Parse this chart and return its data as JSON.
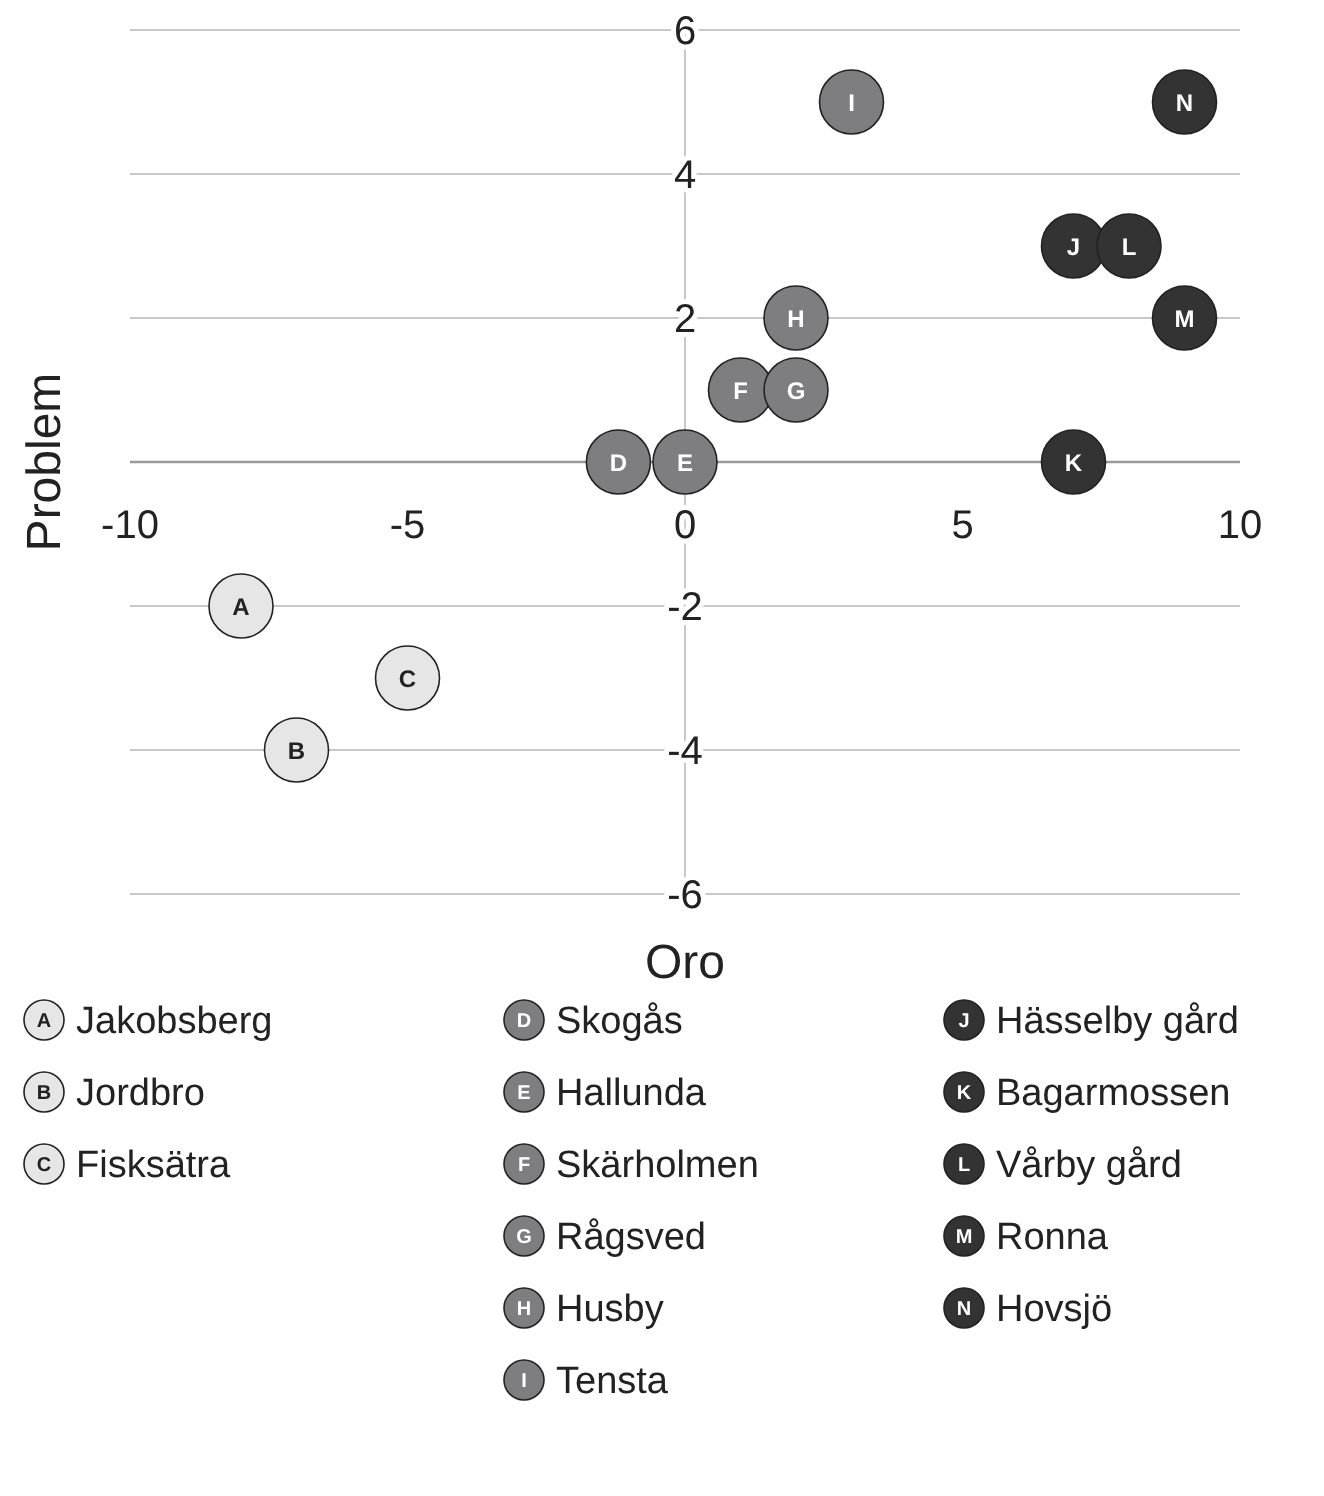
{
  "chart_data": {
    "type": "scatter",
    "xlabel": "Oro",
    "ylabel": "Problem",
    "xlim": [
      -10,
      10
    ],
    "xticks": [
      -10,
      -5,
      0,
      5,
      10
    ],
    "ylim": [
      -6,
      6
    ],
    "yticks": [
      -6,
      -4,
      -2,
      2,
      4,
      6
    ],
    "grid": "y",
    "legend": "bottom",
    "marker": "circle",
    "series": [
      {
        "name": "Jakobsberg",
        "color": "#e6e6e7",
        "x": [
          -8
        ],
        "values": [
          -2
        ]
      },
      {
        "name": "Jordbro",
        "color": "#e6e6e7",
        "x": [
          -7
        ],
        "values": [
          -4
        ]
      },
      {
        "name": "Fisksätra",
        "color": "#e6e6e7",
        "x": [
          -5
        ],
        "values": [
          -3
        ]
      },
      {
        "name": "Skogås",
        "color": "#7e7e80",
        "x": [
          -1.2
        ],
        "values": [
          0
        ]
      },
      {
        "name": "Hallunda",
        "color": "#7e7e80",
        "x": [
          0
        ],
        "values": [
          0
        ]
      },
      {
        "name": "Skärholmen",
        "color": "#7e7e80",
        "x": [
          1
        ],
        "values": [
          1
        ]
      },
      {
        "name": "Rågsved",
        "color": "#7e7e80",
        "x": [
          2
        ],
        "values": [
          1
        ]
      },
      {
        "name": "Husby",
        "color": "#7e7e80",
        "x": [
          2
        ],
        "values": [
          2
        ]
      },
      {
        "name": "Tensta",
        "color": "#7e7e80",
        "x": [
          3
        ],
        "values": [
          5
        ]
      },
      {
        "name": "Hässelby gård",
        "color": "#333334",
        "x": [
          7
        ],
        "values": [
          3
        ]
      },
      {
        "name": "Bagarmossen",
        "color": "#333334",
        "x": [
          7
        ],
        "values": [
          0
        ]
      },
      {
        "name": "Vårby gård",
        "color": "#333334",
        "x": [
          8
        ],
        "values": [
          3
        ]
      },
      {
        "name": "Ronna",
        "color": "#333334",
        "x": [
          9
        ],
        "values": [
          2
        ]
      },
      {
        "name": "Hovsjö",
        "color": "#333334",
        "x": [
          9
        ],
        "values": [
          5
        ]
      }
    ],
    "annotations": [
      {
        "text": "A",
        "x": -8,
        "y": -2
      },
      {
        "text": "B",
        "x": -7,
        "y": -4
      },
      {
        "text": "C",
        "x": -5,
        "y": -3
      },
      {
        "text": "D",
        "x": -1.2,
        "y": 0
      },
      {
        "text": "E",
        "x": 0,
        "y": 0
      },
      {
        "text": "F",
        "x": 1,
        "y": 1
      },
      {
        "text": "G",
        "x": 2,
        "y": 1
      },
      {
        "text": "H",
        "x": 2,
        "y": 2
      },
      {
        "text": "I",
        "x": 3,
        "y": 5
      },
      {
        "text": "J",
        "x": 7,
        "y": 3
      },
      {
        "text": "K",
        "x": 7,
        "y": 0
      },
      {
        "text": "L",
        "x": 8,
        "y": 3
      },
      {
        "text": "M",
        "x": 9,
        "y": 2
      },
      {
        "text": "N",
        "x": 9,
        "y": 5
      }
    ]
  }
}
